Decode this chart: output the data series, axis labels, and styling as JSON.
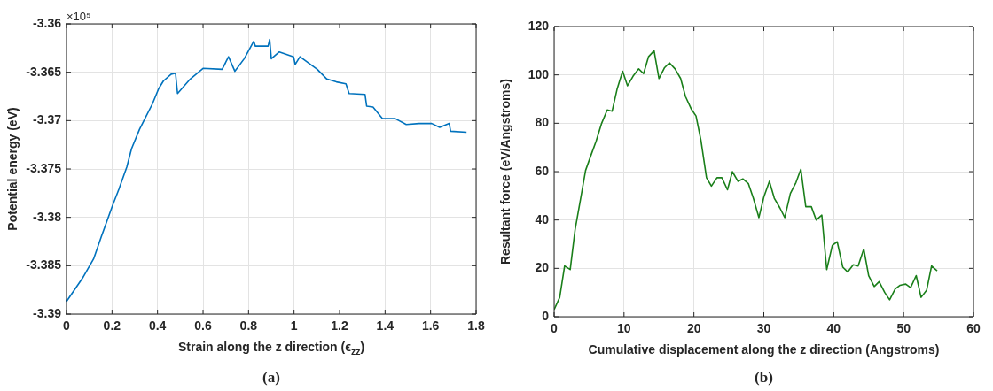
{
  "chart_data": [
    {
      "type": "line",
      "xlabel": "Strain along the z direction (ϵ$_{zz}$)",
      "ylabel": "Potential energy (eV)",
      "annotations": [
        "×10⁵",
        "(a)"
      ],
      "grid": true,
      "legend": false,
      "marker": "none",
      "line_style": "solid",
      "xlim": [
        0,
        1.8
      ],
      "xticks": [
        0,
        0.2,
        0.4,
        0.6,
        0.8,
        1,
        1.2,
        1.4,
        1.6,
        1.8
      ],
      "ylim": [
        -3.39,
        -3.36
      ],
      "yticks": [
        -3.39,
        -3.385,
        -3.38,
        -3.375,
        -3.37,
        -3.365,
        -3.36
      ],
      "x": [
        0,
        0.07,
        0.119,
        0.153,
        0.202,
        0.23,
        0.265,
        0.286,
        0.321,
        0.349,
        0.377,
        0.405,
        0.426,
        0.46,
        0.479,
        0.488,
        0.544,
        0.6,
        0.684,
        0.712,
        0.74,
        0.781,
        0.823,
        0.83,
        0.886,
        0.893,
        0.9,
        0.935,
        0.998,
        1.005,
        1.026,
        1.102,
        1.144,
        1.186,
        1.228,
        1.242,
        1.312,
        1.319,
        1.347,
        1.389,
        1.445,
        1.493,
        1.549,
        1.605,
        1.64,
        1.682,
        1.688,
        1.758
      ],
      "series": [
        {
          "color": "#0072bd",
          "values": [
            -3.3887,
            -3.3863,
            -3.3843,
            -3.382,
            -3.3788,
            -3.3771,
            -3.3748,
            -3.3729,
            -3.3709,
            -3.3696,
            -3.3683,
            -3.3667,
            -3.3659,
            -3.3652,
            -3.3651,
            -3.3672,
            -3.3657,
            -3.3646,
            -3.3647,
            -3.3634,
            -3.3649,
            -3.3636,
            -3.3618,
            -3.3623,
            -3.3623,
            -3.3616,
            -3.3636,
            -3.3629,
            -3.3634,
            -3.3642,
            -3.3634,
            -3.3647,
            -3.3657,
            -3.366,
            -3.3662,
            -3.3672,
            -3.3673,
            -3.3685,
            -3.3686,
            -3.3698,
            -3.3698,
            -3.3704,
            -3.3703,
            -3.3703,
            -3.3707,
            -3.3703,
            -3.3711,
            -3.3712
          ]
        }
      ]
    },
    {
      "type": "line",
      "xlabel": "Cumulative displacement along the z direction (Angstroms)",
      "ylabel": "Resultant force (eV/Angstroms)",
      "annotations": [
        "(b)"
      ],
      "grid": true,
      "legend": false,
      "marker": "none",
      "line_style": "solid",
      "xlim": [
        0,
        60
      ],
      "xticks": [
        0,
        10,
        20,
        30,
        40,
        50,
        60
      ],
      "ylim": [
        0,
        120
      ],
      "yticks": [
        0,
        20,
        40,
        60,
        80,
        100,
        120
      ],
      "x": [
        0,
        0.8,
        1.5,
        2.3,
        3,
        3.8,
        4.5,
        5.3,
        6,
        6.8,
        7.6,
        8.3,
        9,
        9.8,
        10.5,
        11.3,
        12.1,
        12.8,
        13.5,
        14.3,
        15,
        15.8,
        16.5,
        17.3,
        18.1,
        18.8,
        19.6,
        20.3,
        21,
        21.8,
        22.5,
        23.3,
        24,
        24.8,
        25.5,
        26.3,
        27,
        27.8,
        28.5,
        29.3,
        30,
        30.8,
        31.5,
        32.3,
        33,
        33.8,
        34.6,
        35.3,
        36,
        36.8,
        37.5,
        38.3,
        39,
        39.8,
        40.5,
        41.3,
        42,
        42.8,
        43.5,
        44.3,
        45,
        45.8,
        46.5,
        47.3,
        48,
        48.8,
        49.5,
        50.3,
        51,
        51.8,
        52.5,
        53.3,
        54,
        54.8
      ],
      "series": [
        {
          "color": "#1a7f1a",
          "values": [
            3,
            8,
            21,
            19.5,
            36,
            49,
            60.5,
            67,
            72.5,
            80,
            85.5,
            85,
            94,
            101.5,
            95.5,
            99.5,
            102.5,
            100.5,
            107.5,
            110,
            98.5,
            103,
            105,
            102.5,
            98.5,
            91,
            86,
            83,
            73,
            57.5,
            54,
            57.5,
            57.5,
            52.5,
            60,
            56,
            57,
            55,
            49,
            41,
            49.5,
            56,
            49,
            45,
            41,
            51,
            55.5,
            61,
            45.5,
            45.5,
            40,
            42,
            19.5,
            29.5,
            31,
            20.5,
            18.5,
            21.5,
            21,
            28,
            17,
            12.5,
            14.5,
            10,
            7,
            11.5,
            13,
            13.5,
            12,
            17,
            8,
            11,
            21,
            19
          ]
        }
      ]
    }
  ]
}
